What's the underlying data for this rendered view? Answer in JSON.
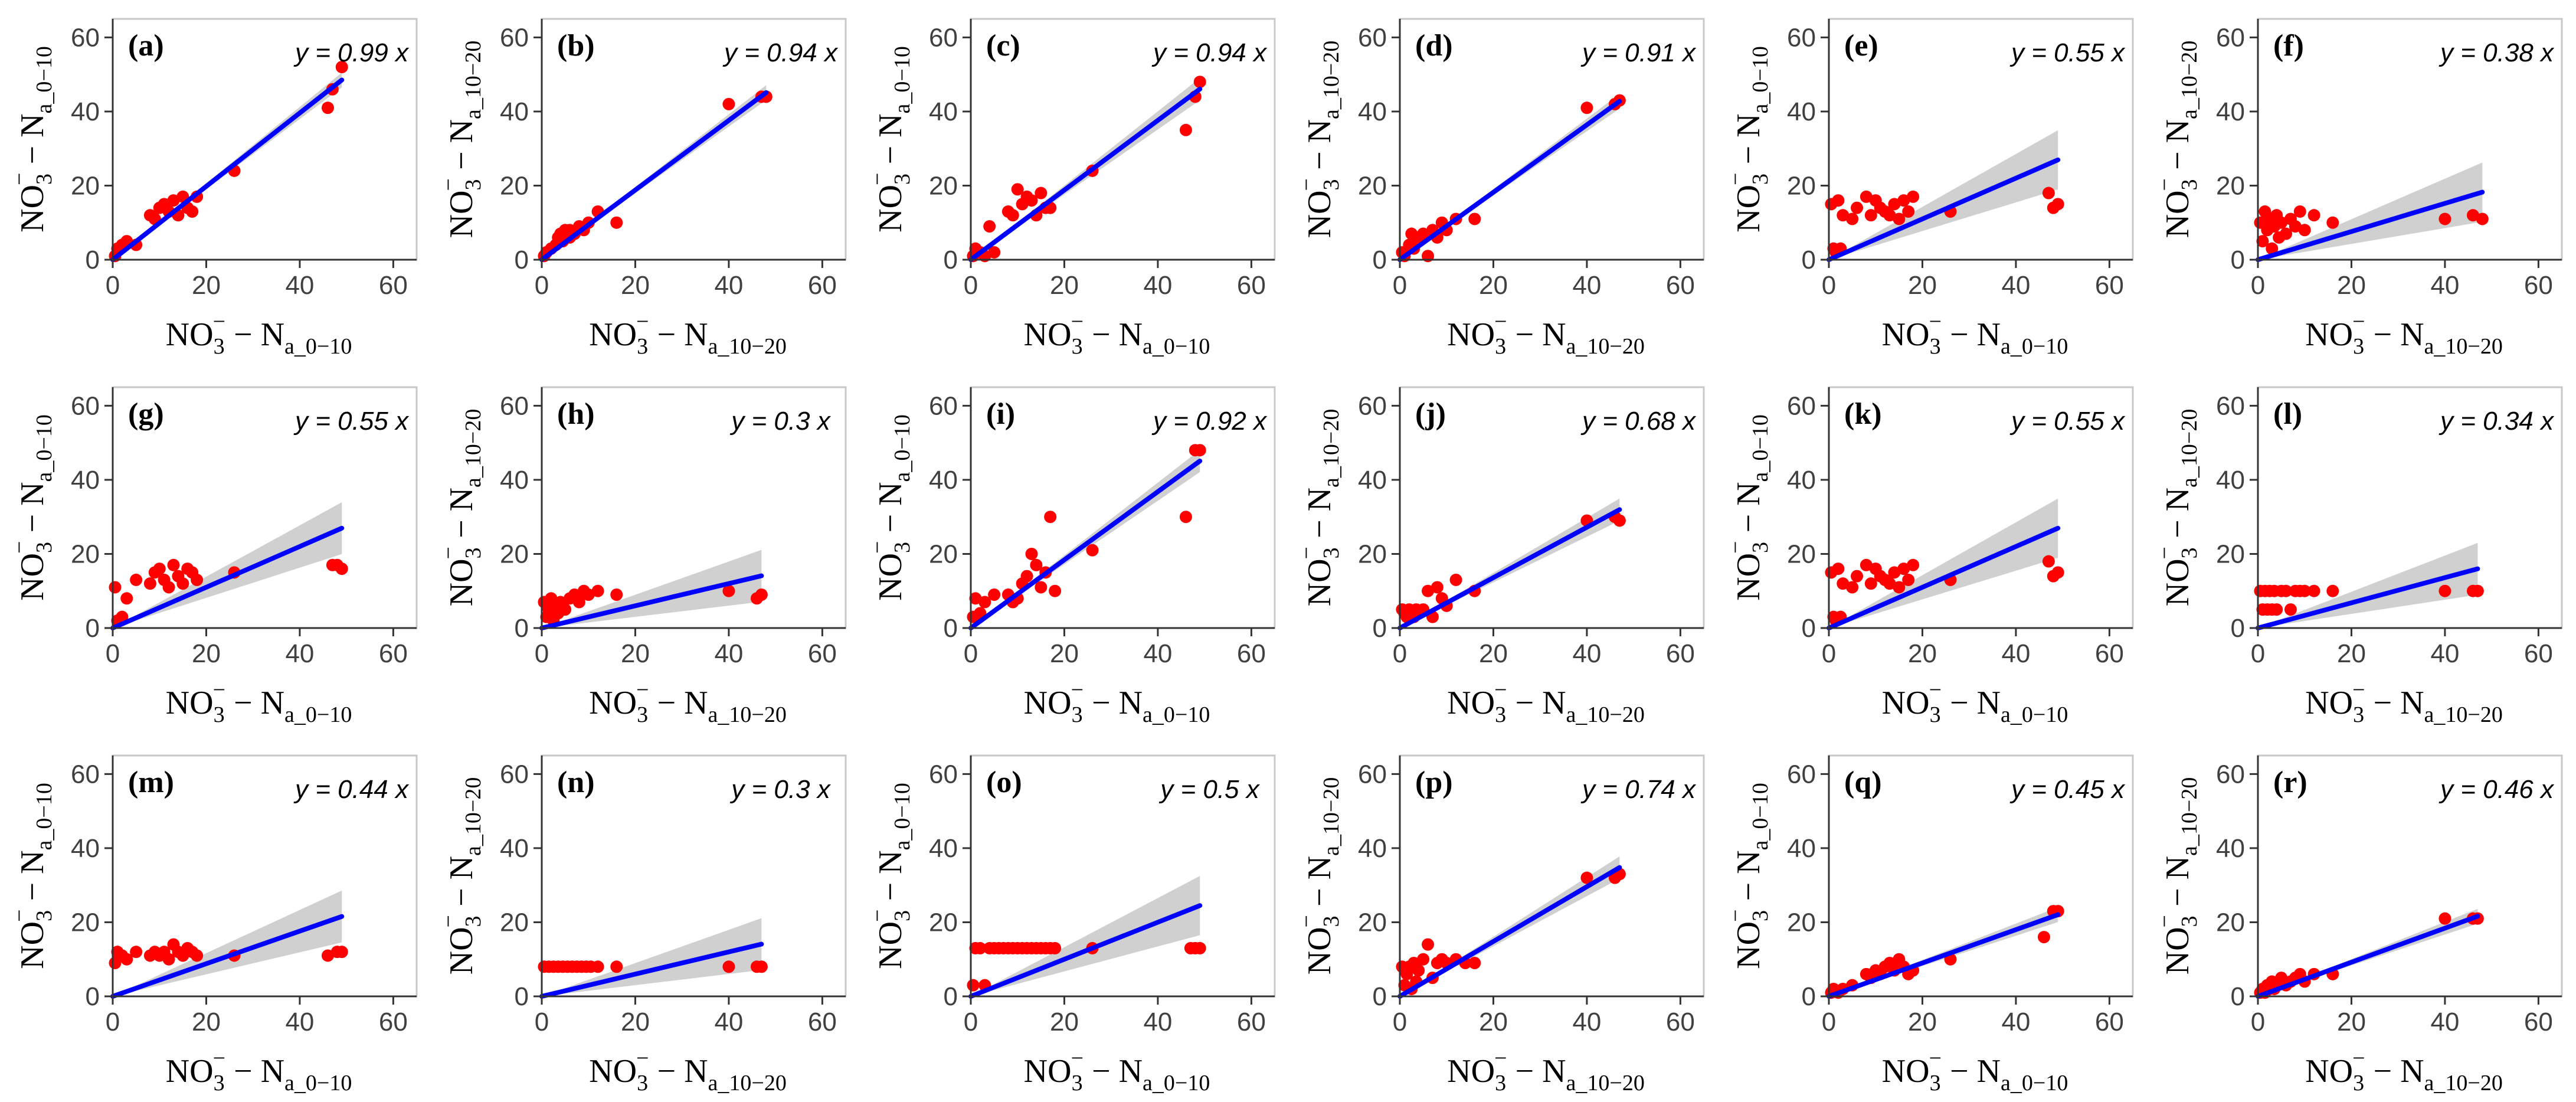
{
  "chart_data": [
    {
      "type": "scatter",
      "title": "(a)",
      "equation": "y = 0.99 x",
      "slope": 0.99,
      "xlabel": "NO3− − Na_0−10",
      "ylabel": "NO3− − Na_0−10",
      "xlim": [
        0,
        65
      ],
      "ylim": [
        0,
        65
      ],
      "xticks": [
        0,
        20,
        40,
        60
      ],
      "yticks": [
        0,
        20,
        40,
        60
      ],
      "ci": [
        0,
        2
      ],
      "x": [
        0.5,
        1,
        2,
        3,
        5,
        8,
        9,
        10,
        11,
        12,
        13,
        14,
        15,
        16,
        17,
        18,
        26,
        46,
        47,
        49
      ],
      "y": [
        1,
        3,
        4,
        5,
        4,
        12,
        11,
        14,
        15,
        13,
        16,
        12,
        17,
        14,
        13,
        17,
        24,
        41,
        46,
        52
      ]
    },
    {
      "type": "scatter",
      "title": "(b)",
      "equation": "y = 0.94 x",
      "slope": 0.94,
      "xlabel": "NO3− − Na_10−20",
      "ylabel": "NO3− − Na_10−20",
      "xlim": [
        0,
        65
      ],
      "ylim": [
        0,
        65
      ],
      "xticks": [
        0,
        20,
        40,
        60
      ],
      "yticks": [
        0,
        20,
        40,
        60
      ],
      "ci": [
        0,
        2
      ],
      "x": [
        0.5,
        1,
        2,
        3,
        3.5,
        4,
        4.5,
        5,
        6,
        6,
        7,
        8,
        9,
        10,
        12,
        16,
        40,
        47,
        48
      ],
      "y": [
        1,
        2,
        3,
        4,
        6,
        7,
        5,
        8,
        6,
        8,
        7,
        9,
        8,
        10,
        13,
        10,
        42,
        44,
        44
      ]
    },
    {
      "type": "scatter",
      "title": "(c)",
      "equation": "y = 0.94 x",
      "slope": 0.94,
      "xlabel": "NO3− − Na_0−10",
      "ylabel": "NO3− − Na_0−10",
      "xlim": [
        0,
        65
      ],
      "ylim": [
        0,
        65
      ],
      "xticks": [
        0,
        20,
        40,
        60
      ],
      "yticks": [
        0,
        20,
        40,
        60
      ],
      "ci": [
        0,
        3
      ],
      "x": [
        0.5,
        1,
        2,
        3,
        4,
        5,
        8,
        9,
        10,
        11,
        12,
        13,
        14,
        15,
        16,
        17,
        26,
        46,
        48,
        49
      ],
      "y": [
        1,
        3,
        2,
        1,
        9,
        2,
        13,
        12,
        19,
        15,
        17,
        16,
        12,
        18,
        14,
        14,
        24,
        35,
        44,
        48
      ]
    },
    {
      "type": "scatter",
      "title": "(d)",
      "equation": "y = 0.91 x",
      "slope": 0.91,
      "xlabel": "NO3− − Na_10−20",
      "ylabel": "NO3− − Na_10−20",
      "xlim": [
        0,
        65
      ],
      "ylim": [
        0,
        65
      ],
      "xticks": [
        0,
        20,
        40,
        60
      ],
      "yticks": [
        0,
        20,
        40,
        60
      ],
      "ci": [
        0,
        2
      ],
      "x": [
        0.5,
        1,
        2,
        2.5,
        3,
        4,
        5,
        6,
        7,
        8,
        9,
        10,
        12,
        16,
        40,
        46,
        47
      ],
      "y": [
        2,
        1,
        4,
        7,
        3,
        6,
        7,
        1,
        8,
        6,
        10,
        8,
        11,
        11,
        41,
        42,
        43
      ]
    },
    {
      "type": "scatter",
      "title": "(e)",
      "equation": "y = 0.55 x",
      "slope": 0.55,
      "xlabel": "NO3− − Na_0−10",
      "ylabel": "NO3− − Na_0−10",
      "xlim": [
        0,
        65
      ],
      "ylim": [
        0,
        65
      ],
      "xticks": [
        0,
        20,
        40,
        60
      ],
      "yticks": [
        0,
        20,
        40,
        60
      ],
      "ci": [
        0,
        8
      ],
      "x": [
        0.5,
        1,
        1.5,
        2,
        2.5,
        3,
        5,
        6,
        8,
        9,
        10,
        11,
        12,
        13,
        14,
        15,
        16,
        17,
        18,
        26,
        47,
        48,
        49
      ],
      "y": [
        15,
        3,
        2,
        16,
        3,
        12,
        11,
        14,
        17,
        12,
        16,
        14,
        13,
        12,
        15,
        11,
        16,
        13,
        17,
        13,
        18,
        14,
        15
      ]
    },
    {
      "type": "scatter",
      "title": "(f)",
      "equation": "y = 0.38 x",
      "slope": 0.38,
      "xlabel": "NO3− − Na_10−20",
      "ylabel": "NO3− − Na_10−20",
      "xlim": [
        0,
        65
      ],
      "ylim": [
        0,
        65
      ],
      "xticks": [
        0,
        20,
        40,
        60
      ],
      "yticks": [
        0,
        20,
        40,
        60
      ],
      "ci": [
        0,
        8
      ],
      "x": [
        0.5,
        1,
        1.5,
        2,
        2.5,
        3,
        3.5,
        4,
        4.5,
        5,
        6,
        7,
        8,
        9,
        10,
        12,
        16,
        40,
        46,
        48
      ],
      "y": [
        10,
        5,
        13,
        8,
        11,
        3,
        9,
        12,
        6,
        10,
        7,
        11,
        9,
        13,
        8,
        12,
        10,
        11,
        12,
        11
      ]
    },
    {
      "type": "scatter",
      "title": "(g)",
      "equation": "y = 0.55 x",
      "slope": 0.55,
      "xlabel": "NO3− − Na_0−10",
      "ylabel": "NO3− − Na_0−10",
      "xlim": [
        0,
        65
      ],
      "ylim": [
        0,
        65
      ],
      "xticks": [
        0,
        20,
        40,
        60
      ],
      "yticks": [
        0,
        20,
        40,
        60
      ],
      "ci": [
        0,
        7
      ],
      "x": [
        0.5,
        1,
        2,
        3,
        5,
        8,
        9,
        10,
        11,
        12,
        13,
        14,
        15,
        16,
        17,
        18,
        26,
        47,
        48,
        49
      ],
      "y": [
        11,
        2,
        3,
        8,
        13,
        12,
        15,
        16,
        13,
        11,
        17,
        14,
        12,
        16,
        15,
        13,
        15,
        17,
        17,
        16
      ]
    },
    {
      "type": "scatter",
      "title": "(h)",
      "equation": "y = 0.3 x",
      "slope": 0.3,
      "xlabel": "NO3− − Na_10−20",
      "ylabel": "NO3− − Na_10−20",
      "xlim": [
        0,
        65
      ],
      "ylim": [
        0,
        65
      ],
      "xticks": [
        0,
        20,
        40,
        60
      ],
      "yticks": [
        0,
        20,
        40,
        60
      ],
      "ci": [
        0,
        7
      ],
      "x": [
        0.5,
        1,
        1.5,
        2,
        2.5,
        3,
        3.5,
        4,
        5,
        6,
        7,
        8,
        9,
        10,
        12,
        16,
        40,
        46,
        47
      ],
      "y": [
        7,
        3,
        5,
        8,
        2,
        6,
        4,
        7,
        5,
        8,
        9,
        7,
        10,
        9,
        10,
        9,
        10,
        8,
        9
      ]
    },
    {
      "type": "scatter",
      "title": "(i)",
      "equation": "y = 0.92 x",
      "slope": 0.92,
      "xlabel": "NO3− − Na_0−10",
      "ylabel": "NO3− − Na_0−10",
      "xlim": [
        0,
        65
      ],
      "ylim": [
        0,
        65
      ],
      "xticks": [
        0,
        20,
        40,
        60
      ],
      "yticks": [
        0,
        20,
        40,
        60
      ],
      "ci": [
        0,
        3
      ],
      "x": [
        0.5,
        1,
        2,
        3,
        5,
        8,
        9,
        10,
        11,
        12,
        13,
        14,
        15,
        16,
        17,
        18,
        26,
        46,
        48,
        49
      ],
      "y": [
        3,
        8,
        4,
        7,
        9,
        9,
        7,
        8,
        12,
        14,
        20,
        17,
        11,
        15,
        30,
        10,
        21,
        30,
        48,
        48
      ]
    },
    {
      "type": "scatter",
      "title": "(j)",
      "equation": "y = 0.68 x",
      "slope": 0.68,
      "xlabel": "NO3− − Na_10−20",
      "ylabel": "NO3− − Na_10−20",
      "xlim": [
        0,
        65
      ],
      "ylim": [
        0,
        65
      ],
      "xticks": [
        0,
        20,
        40,
        60
      ],
      "yticks": [
        0,
        20,
        40,
        60
      ],
      "ci": [
        0,
        3
      ],
      "x": [
        0.5,
        1,
        1.5,
        2,
        2.5,
        3,
        3.5,
        4,
        5,
        6,
        7,
        8,
        9,
        10,
        12,
        16,
        40,
        46,
        47
      ],
      "y": [
        5,
        4,
        3,
        5,
        4,
        3,
        5,
        4,
        5,
        10,
        3,
        11,
        8,
        6,
        13,
        10,
        29,
        30,
        29
      ]
    },
    {
      "type": "scatter",
      "title": "(k)",
      "equation": "y = 0.55 x",
      "slope": 0.55,
      "xlabel": "NO3− − Na_0−10",
      "ylabel": "NO3− − Na_0−10",
      "xlim": [
        0,
        65
      ],
      "ylim": [
        0,
        65
      ],
      "xticks": [
        0,
        20,
        40,
        60
      ],
      "yticks": [
        0,
        20,
        40,
        60
      ],
      "ci": [
        0,
        8
      ],
      "x": [
        0.5,
        1,
        1.5,
        2,
        2.5,
        3,
        5,
        6,
        8,
        9,
        10,
        11,
        12,
        13,
        14,
        15,
        16,
        17,
        18,
        26,
        47,
        48,
        49
      ],
      "y": [
        15,
        3,
        2,
        16,
        3,
        12,
        11,
        14,
        17,
        12,
        16,
        14,
        13,
        12,
        15,
        11,
        16,
        13,
        17,
        13,
        18,
        14,
        15
      ]
    },
    {
      "type": "scatter",
      "title": "(l)",
      "equation": "y = 0.34 x",
      "slope": 0.34,
      "xlabel": "NO3− − Na_10−20",
      "ylabel": "NO3− − Na_10−20",
      "xlim": [
        0,
        65
      ],
      "ylim": [
        0,
        65
      ],
      "xticks": [
        0,
        20,
        40,
        60
      ],
      "yticks": [
        0,
        20,
        40,
        60
      ],
      "ci": [
        0,
        7
      ],
      "x": [
        0.5,
        1,
        1.5,
        2,
        2.5,
        3,
        3.5,
        4,
        5,
        6,
        7,
        8,
        9,
        10,
        12,
        16,
        40,
        46,
        47
      ],
      "y": [
        10,
        5,
        10,
        5,
        10,
        5,
        10,
        5,
        10,
        10,
        5,
        10,
        10,
        10,
        10,
        10,
        10,
        10,
        10
      ]
    },
    {
      "type": "scatter",
      "title": "(m)",
      "equation": "y = 0.44 x",
      "slope": 0.44,
      "xlabel": "NO3− − Na_0−10",
      "ylabel": "NO3− − Na_0−10",
      "xlim": [
        0,
        65
      ],
      "ylim": [
        0,
        65
      ],
      "xticks": [
        0,
        20,
        40,
        60
      ],
      "yticks": [
        0,
        20,
        40,
        60
      ],
      "ci": [
        0,
        7
      ],
      "x": [
        0.5,
        1,
        2,
        3,
        5,
        8,
        9,
        10,
        11,
        12,
        13,
        14,
        15,
        16,
        17,
        18,
        26,
        46,
        48,
        49
      ],
      "y": [
        9,
        12,
        11,
        10,
        12,
        11,
        12,
        11,
        12,
        10,
        14,
        12,
        11,
        13,
        12,
        11,
        11,
        11,
        12,
        12
      ]
    },
    {
      "type": "scatter",
      "title": "(n)",
      "equation": "y = 0.3 x",
      "slope": 0.3,
      "xlabel": "NO3− − Na_10−20",
      "ylabel": "NO3− − Na_10−20",
      "xlim": [
        0,
        65
      ],
      "ylim": [
        0,
        65
      ],
      "xticks": [
        0,
        20,
        40,
        60
      ],
      "yticks": [
        0,
        20,
        40,
        60
      ],
      "ci": [
        0,
        7
      ],
      "x": [
        0.5,
        1.5,
        2.5,
        3.5,
        4.5,
        5.5,
        6.5,
        7.5,
        8.5,
        9.5,
        10.5,
        12,
        16,
        40,
        46,
        47
      ],
      "y": [
        8,
        8,
        8,
        8,
        8,
        8,
        8,
        8,
        8,
        8,
        8,
        8,
        8,
        8,
        8,
        8
      ]
    },
    {
      "type": "scatter",
      "title": "(o)",
      "equation": "y = 0.5 x",
      "slope": 0.5,
      "xlabel": "NO3− − Na_0−10",
      "ylabel": "NO3− − Na_0−10",
      "xlim": [
        0,
        65
      ],
      "ylim": [
        0,
        65
      ],
      "xticks": [
        0,
        20,
        40,
        60
      ],
      "yticks": [
        0,
        20,
        40,
        60
      ],
      "ci": [
        0,
        8
      ],
      "x": [
        0.5,
        1,
        2,
        3,
        4,
        5,
        6,
        7,
        8,
        9,
        10,
        11,
        12,
        13,
        14,
        15,
        16,
        17,
        18,
        26,
        47,
        48,
        49
      ],
      "y": [
        3,
        13,
        13,
        3,
        13,
        13,
        13,
        13,
        13,
        13,
        13,
        13,
        13,
        13,
        13,
        13,
        13,
        13,
        13,
        13,
        13,
        13,
        13
      ]
    },
    {
      "type": "scatter",
      "title": "(p)",
      "equation": "y = 0.74 x",
      "slope": 0.74,
      "xlabel": "NO3− − Na_10−20",
      "ylabel": "NO3− − Na_10−20",
      "xlim": [
        0,
        65
      ],
      "ylim": [
        0,
        65
      ],
      "xticks": [
        0,
        20,
        40,
        60
      ],
      "yticks": [
        0,
        20,
        40,
        60
      ],
      "ci": [
        0,
        3
      ],
      "x": [
        0.5,
        1,
        1.5,
        2,
        2.5,
        3,
        3.5,
        4,
        5,
        6,
        7,
        8,
        9,
        10,
        12,
        14,
        16,
        40,
        46,
        47
      ],
      "y": [
        8,
        3,
        6,
        8,
        2,
        9,
        4,
        7,
        10,
        14,
        5,
        9,
        10,
        9,
        10,
        9,
        9,
        32,
        32,
        33
      ]
    },
    {
      "type": "scatter",
      "title": "(q)",
      "equation": "y = 0.45 x",
      "slope": 0.45,
      "xlabel": "NO3− − Na_0−10",
      "ylabel": "NO3− − Na_0−10",
      "xlim": [
        0,
        65
      ],
      "ylim": [
        0,
        65
      ],
      "xticks": [
        0,
        20,
        40,
        60
      ],
      "yticks": [
        0,
        20,
        40,
        60
      ],
      "ci": [
        0,
        2
      ],
      "x": [
        0.5,
        1,
        2,
        3,
        5,
        8,
        9,
        10,
        11,
        12,
        13,
        14,
        15,
        16,
        17,
        18,
        26,
        46,
        48,
        49
      ],
      "y": [
        1,
        2,
        1,
        2,
        3,
        6,
        5,
        7,
        6,
        8,
        9,
        7,
        10,
        8,
        6,
        7,
        10,
        16,
        23,
        23
      ]
    },
    {
      "type": "scatter",
      "title": "(r)",
      "equation": "y = 0.46 x",
      "slope": 0.46,
      "xlabel": "NO3− − Na_10−20",
      "ylabel": "NO3− − Na_10−20",
      "xlim": [
        0,
        65
      ],
      "ylim": [
        0,
        65
      ],
      "xticks": [
        0,
        20,
        40,
        60
      ],
      "yticks": [
        0,
        20,
        40,
        60
      ],
      "ci": [
        0,
        2
      ],
      "x": [
        0.5,
        1,
        1.5,
        2,
        2.5,
        3,
        3.5,
        4,
        5,
        6,
        7,
        8,
        9,
        10,
        12,
        16,
        40,
        46,
        47
      ],
      "y": [
        1,
        2,
        1,
        3,
        2,
        4,
        2,
        3,
        5,
        3,
        4,
        5,
        6,
        4,
        6,
        6,
        21,
        21,
        21
      ]
    }
  ],
  "colors": {
    "points": "#ff0000",
    "fit": "#0000ff",
    "band": "#c8c8c8",
    "axis": "#333333",
    "frame": "#c8c8c8",
    "text": "#000000",
    "tick_text": "#404040"
  }
}
